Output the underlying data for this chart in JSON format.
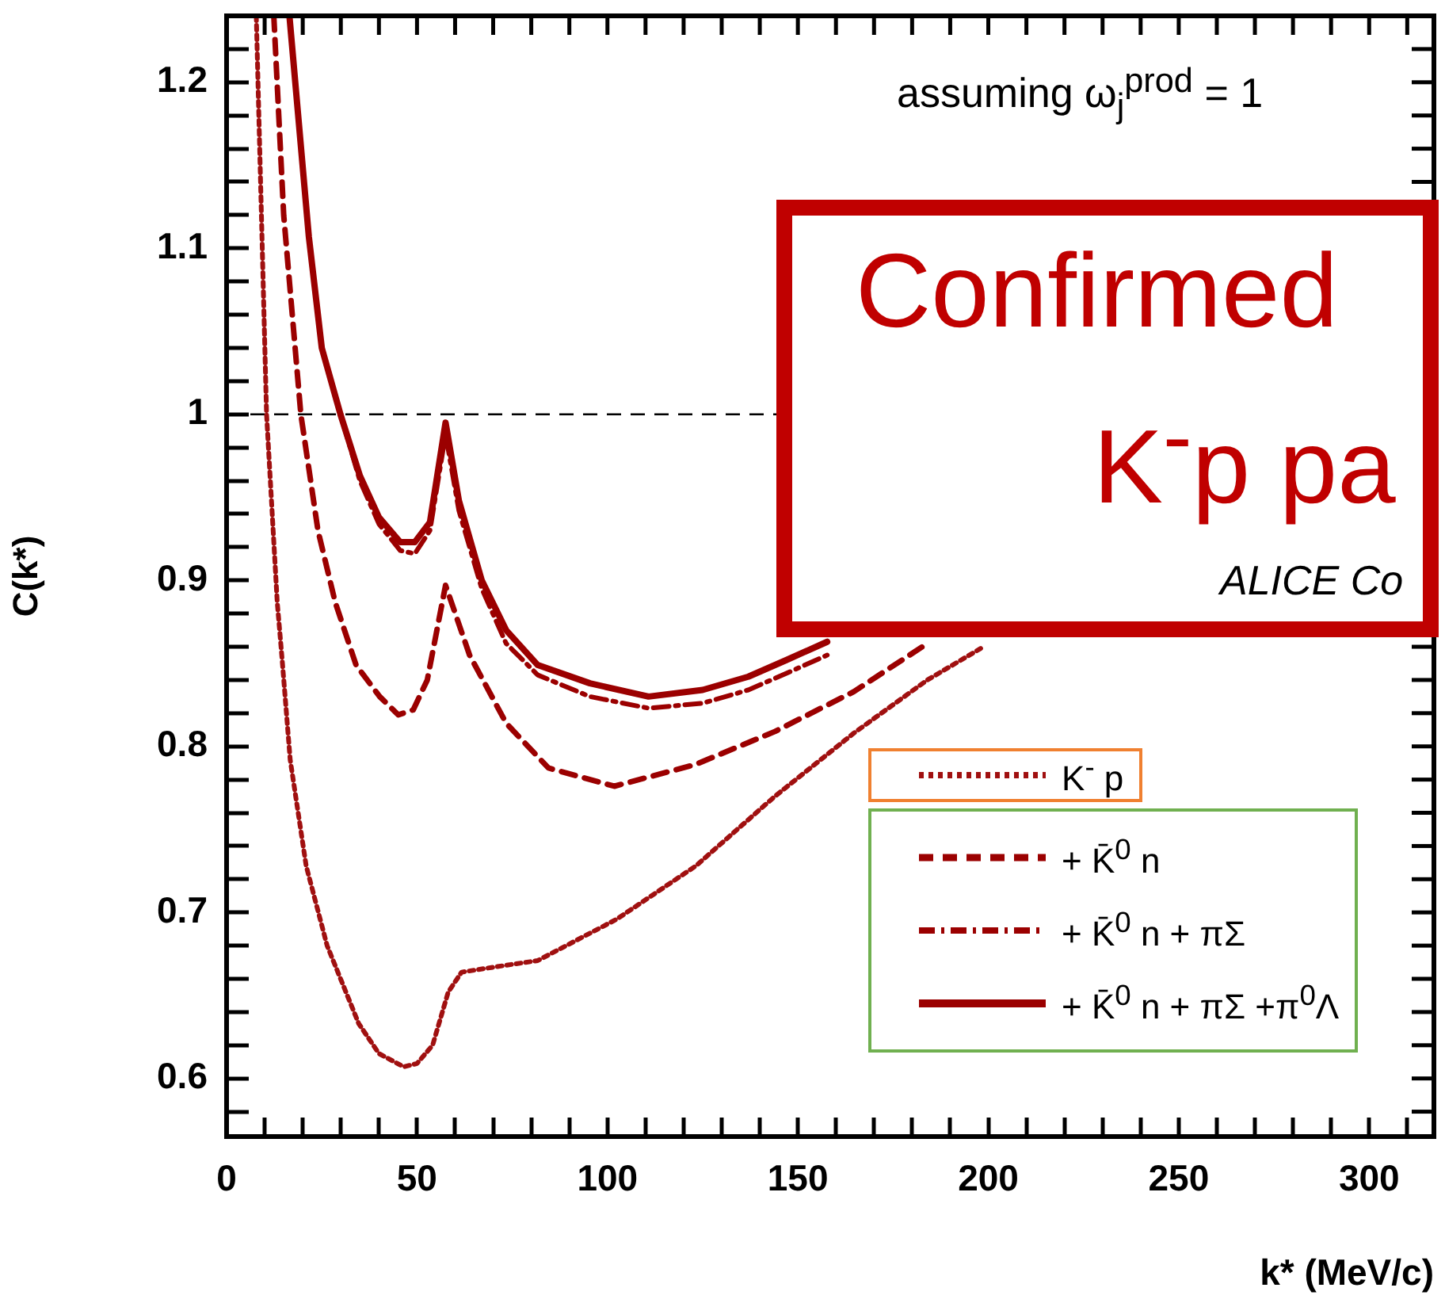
{
  "chart_data": {
    "type": "line",
    "xlabel": "k* (MeV/c)",
    "ylabel": "C(k*)",
    "xlim": [
      0,
      317
    ],
    "xticks": [
      0,
      {
        "value": 10,
        "label": null
      },
      {
        "value": 20,
        "label": null
      },
      {
        "value": 30,
        "label": null
      },
      {
        "value": 40,
        "label": null
      },
      50,
      {
        "value": 60,
        "label": null
      },
      {
        "value": 70,
        "label": null
      },
      {
        "value": 80,
        "label": null
      },
      {
        "value": 90,
        "label": null
      },
      100,
      {
        "value": 110,
        "label": null
      },
      {
        "value": 120,
        "label": null
      },
      {
        "value": 130,
        "label": null
      },
      {
        "value": 140,
        "label": null
      },
      150,
      {
        "value": 160,
        "label": null
      },
      {
        "value": 170,
        "label": null
      },
      {
        "value": 180,
        "label": null
      },
      {
        "value": 190,
        "label": null
      },
      200,
      {
        "value": 210,
        "label": null
      },
      {
        "value": 220,
        "label": null
      },
      {
        "value": 230,
        "label": null
      },
      {
        "value": 240,
        "label": null
      },
      250,
      {
        "value": 260,
        "label": null
      },
      {
        "value": 270,
        "label": null
      },
      {
        "value": 280,
        "label": null
      },
      {
        "value": 290,
        "label": null
      },
      300,
      {
        "value": 310,
        "label": null
      }
    ],
    "ylim": [
      0.565,
      1.24
    ],
    "yticks": [
      {
        "value": 0.58,
        "label": null
      },
      0.6,
      {
        "value": 0.62,
        "label": null
      },
      {
        "value": 0.64,
        "label": null
      },
      {
        "value": 0.66,
        "label": null
      },
      {
        "value": 0.68,
        "label": null
      },
      0.7,
      {
        "value": 0.72,
        "label": null
      },
      {
        "value": 0.74,
        "label": null
      },
      {
        "value": 0.76,
        "label": null
      },
      {
        "value": 0.78,
        "label": null
      },
      0.8,
      {
        "value": 0.82,
        "label": null
      },
      {
        "value": 0.84,
        "label": null
      },
      {
        "value": 0.86,
        "label": null
      },
      {
        "value": 0.88,
        "label": null
      },
      0.9,
      {
        "value": 0.92,
        "label": null
      },
      {
        "value": 0.94,
        "label": null
      },
      {
        "value": 0.96,
        "label": null
      },
      {
        "value": 0.98,
        "label": null
      },
      1,
      {
        "value": 1.02,
        "label": null
      },
      {
        "value": 1.04,
        "label": null
      },
      {
        "value": 1.06,
        "label": null
      },
      {
        "value": 1.08,
        "label": null
      },
      1.1,
      {
        "value": 1.12,
        "label": null
      },
      {
        "value": 1.14,
        "label": null
      },
      {
        "value": 1.16,
        "label": null
      },
      {
        "value": 1.18,
        "label": null
      },
      1.2,
      {
        "value": 1.22,
        "label": null
      }
    ],
    "legend": "bottom right",
    "marker": "none",
    "ref_lines": [
      {
        "axis": "y",
        "value": 1,
        "color": "#000000",
        "line_style": "dashed"
      }
    ],
    "annotations": [
      "assuming ω$_{j}$$^{prod}$ = 1",
      "Confirmed",
      "K$^{-}$p pa",
      "ALICE Co"
    ],
    "series": [
      {
        "name": "K$^{-}$ p",
        "color": "#a01010",
        "line_style": "dotted",
        "x": [
          7.8,
          10.5,
          13.3,
          14.6,
          16.7,
          20.9,
          26.4,
          34.7,
          40,
          46.5,
          50,
          54.1,
          58.2,
          61.7,
          70,
          81.7,
          102.5,
          123.2,
          144,
          164.7,
          184,
          198
        ],
        "values": [
          1.24,
          1.0,
          0.887,
          0.852,
          0.792,
          0.728,
          0.68,
          0.633,
          0.615,
          0.607,
          0.609,
          0.62,
          0.652,
          0.664,
          0.667,
          0.671,
          0.696,
          0.728,
          0.77,
          0.808,
          0.84,
          0.859
        ]
      },
      {
        "name": "+ K̄$^{0}$ n",
        "color": "#9b0000",
        "line_style": "dashed",
        "x": [
          12.4,
          15,
          19.5,
          24,
          28.5,
          34,
          40.2,
          45.1,
          49,
          52.7,
          57.5,
          63.8,
          73.4,
          84.5,
          101.8,
          123,
          144,
          164.7,
          184
        ],
        "values": [
          1.24,
          1.12,
          1.0,
          0.93,
          0.887,
          0.849,
          0.83,
          0.819,
          0.822,
          0.84,
          0.897,
          0.855,
          0.814,
          0.787,
          0.776,
          0.789,
          0.809,
          0.833,
          0.862
        ]
      },
      {
        "name": "+ K̄$^{0}$ n + πΣ",
        "color": "#9b0000",
        "line_style": "dashdot",
        "x": [
          16.5,
          21.6,
          25,
          29.9,
          35,
          40,
          45.6,
          49.4,
          53.4,
          57.5,
          61,
          67,
          73.4,
          81.7,
          95.4,
          110.8,
          125,
          137,
          147,
          157.7
        ],
        "values": [
          1.24,
          1.107,
          1.04,
          1.0,
          0.96,
          0.934,
          0.918,
          0.916,
          0.93,
          0.988,
          0.942,
          0.895,
          0.862,
          0.843,
          0.83,
          0.823,
          0.826,
          0.834,
          0.844,
          0.855
        ]
      },
      {
        "name": "+ K̄$^{0}$ n + πΣ +π$^{0}$Λ",
        "color": "#9b0000",
        "line_style": "solid",
        "x": [
          16.5,
          21.6,
          25,
          29.9,
          35,
          40,
          45.6,
          49.4,
          53.4,
          57.5,
          61,
          67,
          73.4,
          81.7,
          95.4,
          110.8,
          125,
          137,
          147,
          157.7
        ],
        "values": [
          1.24,
          1.107,
          1.04,
          1.0,
          0.963,
          0.938,
          0.923,
          0.923,
          0.935,
          0.995,
          0.948,
          0.9,
          0.87,
          0.849,
          0.838,
          0.83,
          0.834,
          0.842,
          0.852,
          0.863
        ]
      }
    ]
  }
}
